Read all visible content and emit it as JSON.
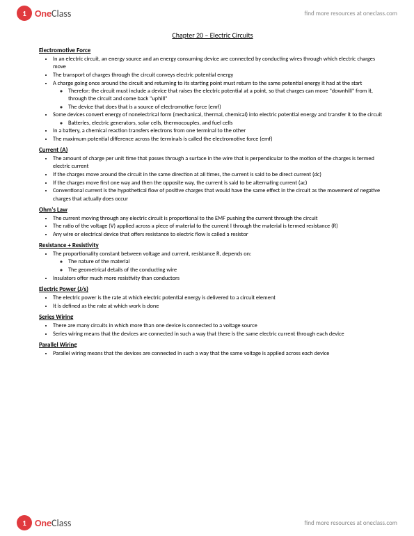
{
  "brand": {
    "one": "One",
    "class": "Class",
    "tagline": "find more resources at oneclass.com"
  },
  "title": "Chapter 20 – Electric Circuits",
  "sections": [
    {
      "heading": "Electromotive Force",
      "items": [
        {
          "text": "In an electric circuit, an energy source and an energy consuming device are connected by conducting wires through which electric charges move"
        },
        {
          "text": "The transport of charges through the circuit conveys electric potential energy"
        },
        {
          "text": "A charge going once around the circuit and returning to its starting point must return to the same potential energy it had at the start",
          "sub": [
            "Therefor: the circuit must include a device that raises the electric potential at a point, so that charges can move \"downhill\" from it, through the circuit and come back \"uphill\"",
            "The device that does that is a source of electromotive force (emf)"
          ]
        },
        {
          "text": "Some devices convert energy of nonelectrical form (mechanical, thermal, chemical) into electric potential energy and transfer it to the circuit",
          "sub": [
            "Batteries, electric generators, solar cells, thermocouples, and fuel cells"
          ]
        },
        {
          "text": "In a battery, a chemical reaction transfers electrons from one terminal to the other"
        },
        {
          "text": "The maximum potential difference across the terminals is called the electromotive force (emf)"
        }
      ]
    },
    {
      "heading": "Current (A)",
      "items": [
        {
          "text": "The amount of charge per unit time that passes through a surface in the wire that is perpendicular to the motion of the charges is termed electric current"
        },
        {
          "text": "If the charges move around the circuit in the same direction at all times, the current is said to be direct current (dc)"
        },
        {
          "text": "If the charges move first one way and then the opposite way, the current is said to be alternating current (ac)"
        },
        {
          "text": "Conventional current is the hypothetical flow of positive charges that would have the same effect in the circuit as the movement of negative charges that actually does occur"
        }
      ]
    },
    {
      "heading": "Ohm's Law",
      "items": [
        {
          "text": "The current moving through any electric circuit is proportional to the EMF pushing the current through the circuit"
        },
        {
          "text": "The ratio of the voltage (V) applied across a piece of material to the current I through the material is termed resistance (R)"
        },
        {
          "text": "Any wire or electrical device that offers resistance to electric flow is called a resistor"
        }
      ]
    },
    {
      "heading": "Resistance + Resistivity",
      "items": [
        {
          "text": "The proportionality constant between voltage and current, resistance R, depends on:",
          "sub": [
            "The nature of the material",
            "The geometrical details of the conducting wire"
          ]
        },
        {
          "text": "Insulators offer much more resistivity than conductors"
        }
      ]
    },
    {
      "heading": "Electric Power (J/s)",
      "items": [
        {
          "text": "The electric power is the rate at which electric potential energy is delivered to a circuit element"
        },
        {
          "text": "It is defined as the rate at which work is done"
        }
      ]
    },
    {
      "heading": "Series Wiring",
      "items": [
        {
          "text": "There are many circuits in which more than one device is connected to a voltage source"
        },
        {
          "text": "Series wiring means that the devices are connected in such a way that there is the same electric current through each device"
        }
      ]
    },
    {
      "heading": "Parallel Wiring",
      "items": [
        {
          "text": "Parallel wiring means that the devices are connected in such a way that the same voltage is applied across each device"
        }
      ]
    }
  ]
}
